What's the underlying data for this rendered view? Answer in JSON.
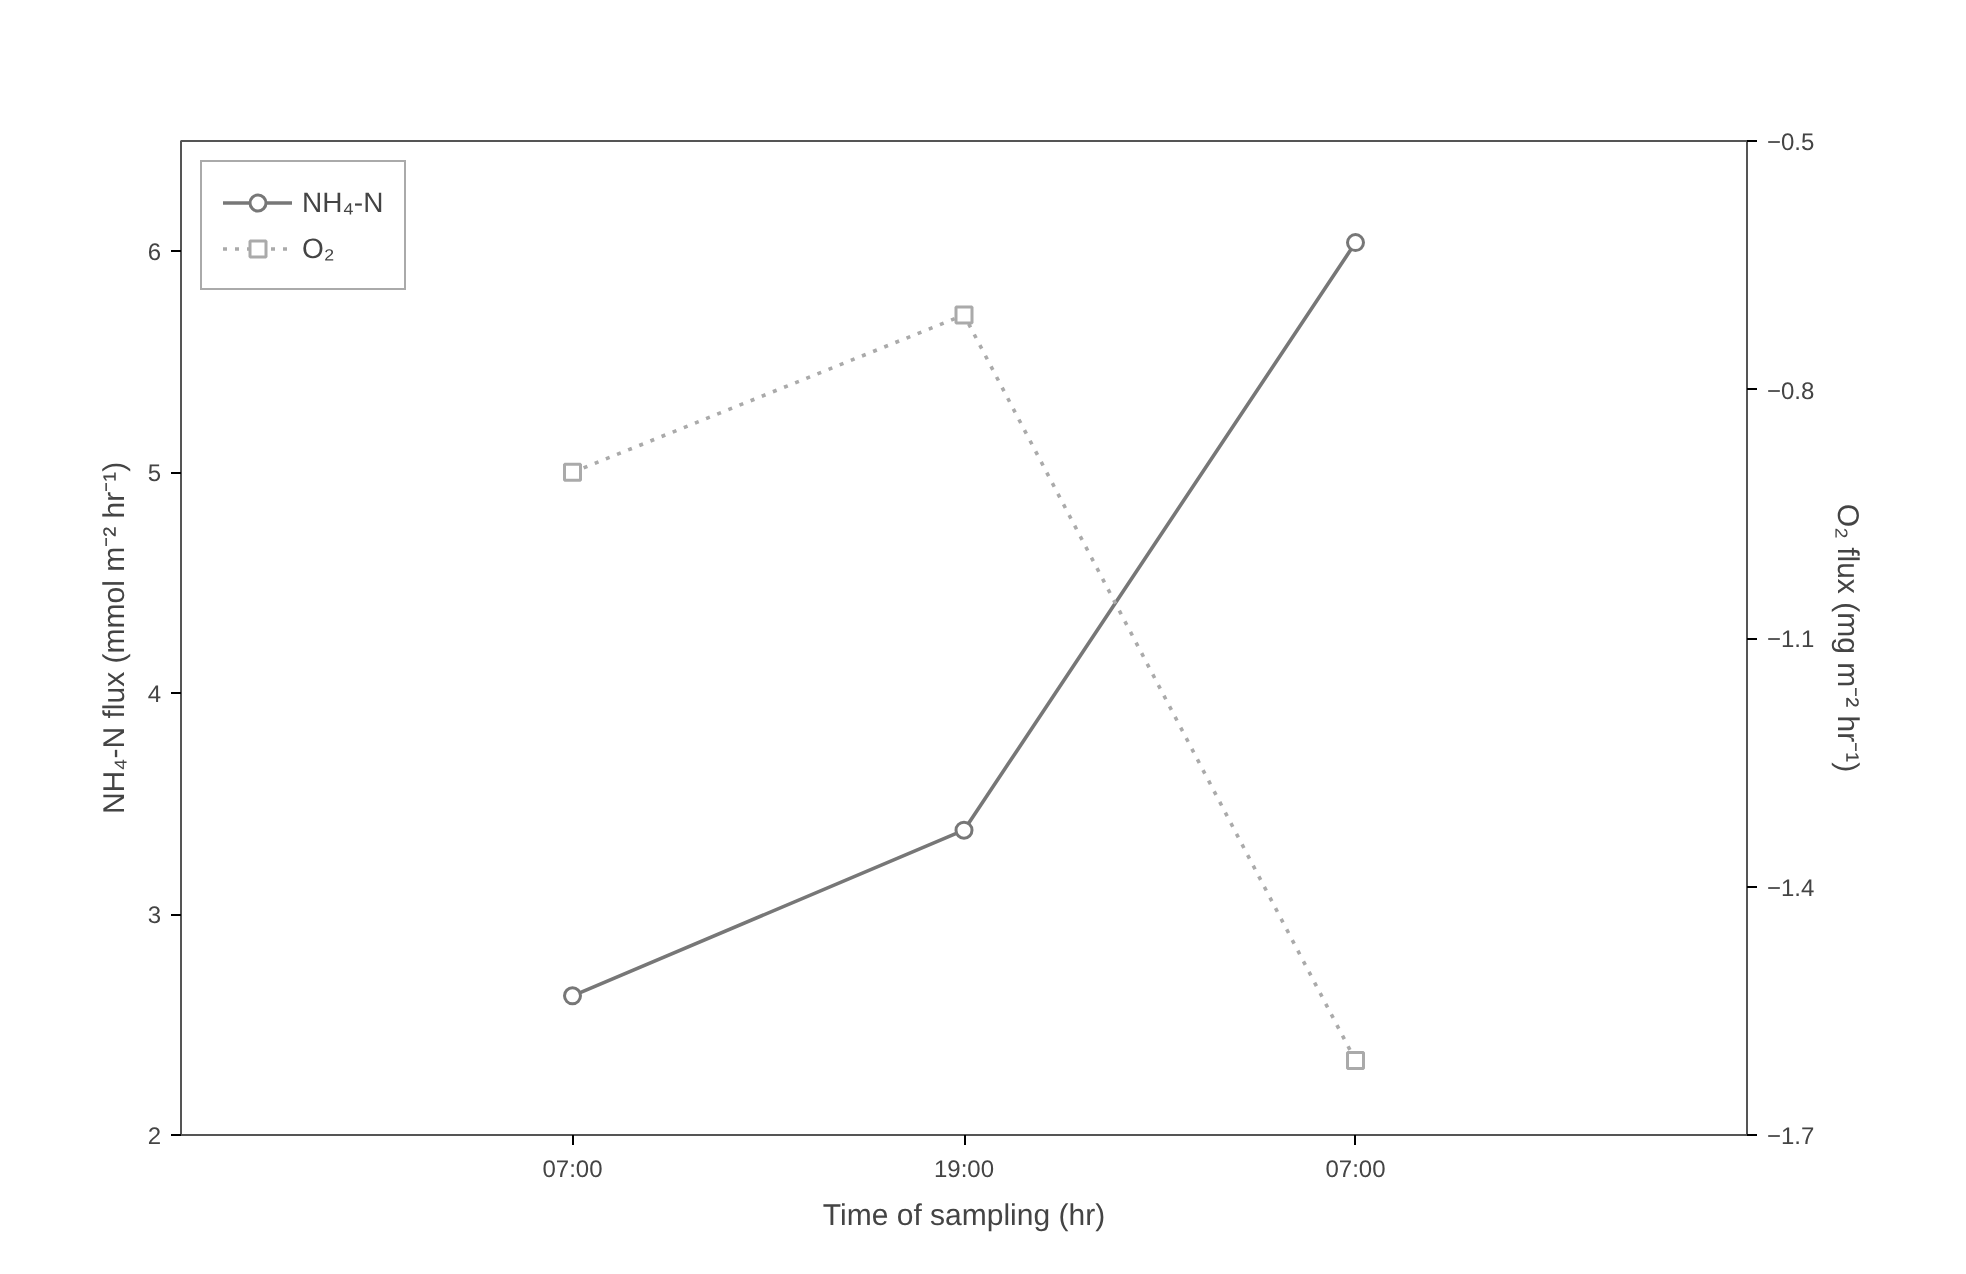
{
  "chart_data": {
    "type": "line",
    "xlabel": "Time of sampling (hr)",
    "ylabel": "NH₄-N flux (mmol m⁻² hr⁻¹)",
    "y2label": "O₂ flux (mg m⁻² hr⁻¹)",
    "categories": [
      "07:00",
      "19:00",
      "07:00"
    ],
    "series": [
      {
        "name": "NH₄-N",
        "color": "#777777",
        "values": [
          2.63,
          3.38,
          6.04
        ],
        "marker": "circle",
        "line_style": "solid"
      },
      {
        "name": "O₂",
        "color": "#aaaaaa",
        "values": [
          -0.9,
          -0.71,
          -1.61
        ],
        "axis": "y2",
        "marker": "square",
        "line_style": "dotted"
      }
    ],
    "ylim": [
      2,
      6.5
    ],
    "yticks": [
      2,
      3,
      4,
      5,
      6
    ],
    "y2lim": [
      -1.7,
      -0.5
    ],
    "y2ticks": [
      -1.7,
      -1.4,
      -1.1,
      -0.8,
      -0.5
    ],
    "grid": false,
    "legend": "top left"
  }
}
